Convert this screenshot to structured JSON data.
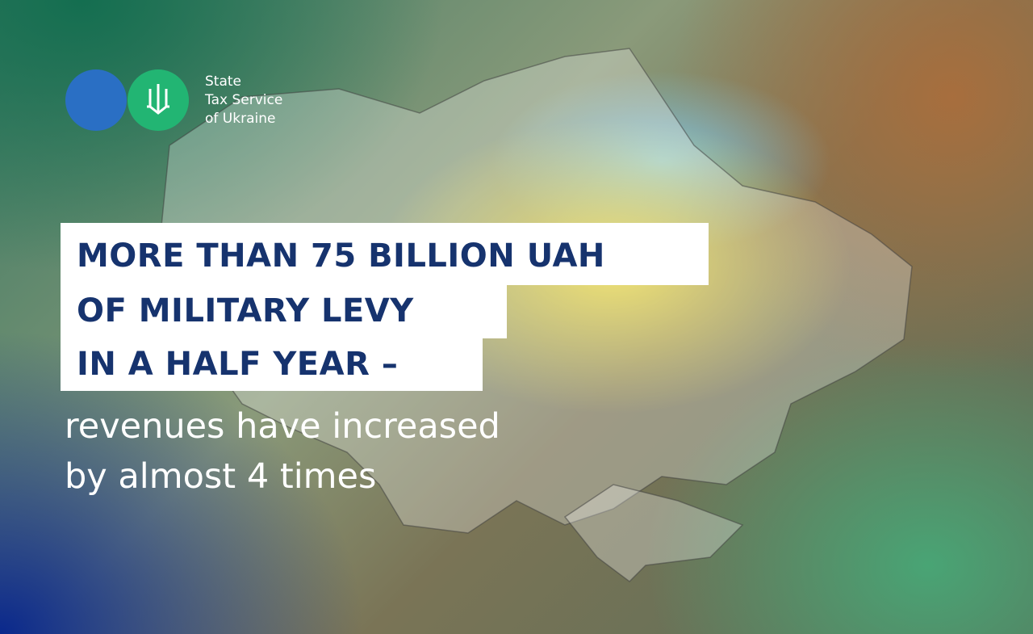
{
  "logo": {
    "lines": [
      "State",
      "Tax Service",
      "of Ukraine"
    ]
  },
  "headline": {
    "lines": [
      "MORE THAN 75 BILLION UAH",
      "OF MILITARY LEVY",
      "IN A HALF YEAR –"
    ]
  },
  "subheadline": {
    "lines": [
      "revenues have increased",
      "by almost 4 times"
    ]
  }
}
